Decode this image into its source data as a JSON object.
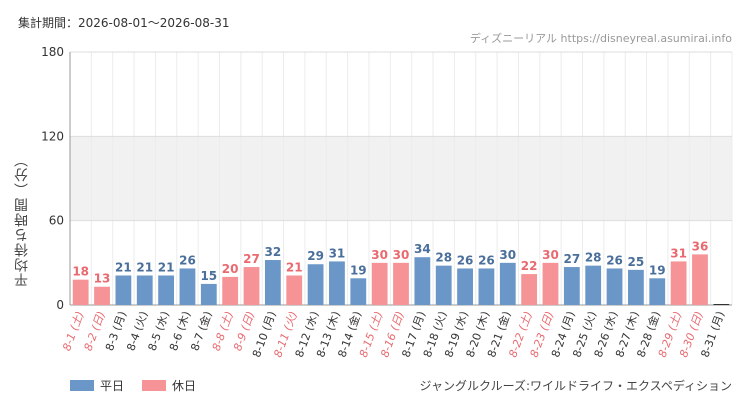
{
  "header": {
    "period": "集計期間：2026-08-01～2026-08-31",
    "source": "ディズニーリアル https://disneyreal.asumirai.info"
  },
  "footer": {
    "attraction": "ジャングルクルーズ:ワイルドライフ・エクスペディション"
  },
  "legend": [
    {
      "label": "平日",
      "color": "#6a97c7"
    },
    {
      "label": "休日",
      "color": "#f59396"
    }
  ],
  "colors": {
    "weekday": "#6a97c7",
    "holiday": "#f59396",
    "weekday_label": "#4a6f9a",
    "holiday_label": "#e86a70",
    "weekday_tick": "#333333",
    "holiday_tick": "#e86a70",
    "band": "#f1f1f1",
    "grid": "#dddddd"
  },
  "chart_data": {
    "type": "bar",
    "ylabel": "平均待ち時間（分）",
    "xlabel": "",
    "ylim": [
      0,
      180
    ],
    "yticks": [
      0,
      60,
      120,
      180
    ],
    "grid": true,
    "legend_position": "bottom-left",
    "shaded_band": [
      60,
      120
    ],
    "categories": [
      "8-1 (土)",
      "8-2 (日)",
      "8-3 (月)",
      "8-4 (火)",
      "8-5 (水)",
      "8-6 (木)",
      "8-7 (金)",
      "8-8 (土)",
      "8-9 (日)",
      "8-10 (月)",
      "8-11 (火)",
      "8-12 (水)",
      "8-13 (木)",
      "8-14 (金)",
      "8-15 (土)",
      "8-16 (日)",
      "8-17 (月)",
      "8-18 (火)",
      "8-19 (水)",
      "8-20 (木)",
      "8-21 (金)",
      "8-22 (土)",
      "8-23 (日)",
      "8-24 (月)",
      "8-25 (火)",
      "8-26 (水)",
      "8-27 (木)",
      "8-28 (金)",
      "8-29 (土)",
      "8-30 (日)",
      "8-31 (月)"
    ],
    "values": [
      18,
      13,
      21,
      21,
      21,
      26,
      15,
      20,
      27,
      32,
      21,
      29,
      31,
      19,
      30,
      30,
      34,
      28,
      26,
      26,
      30,
      22,
      30,
      27,
      28,
      26,
      25,
      19,
      31,
      36,
      null
    ],
    "day_type": [
      "holiday",
      "holiday",
      "weekday",
      "weekday",
      "weekday",
      "weekday",
      "weekday",
      "holiday",
      "holiday",
      "weekday",
      "holiday",
      "weekday",
      "weekday",
      "weekday",
      "holiday",
      "holiday",
      "weekday",
      "weekday",
      "weekday",
      "weekday",
      "weekday",
      "holiday",
      "holiday",
      "weekday",
      "weekday",
      "weekday",
      "weekday",
      "weekday",
      "holiday",
      "holiday",
      "weekday"
    ]
  }
}
